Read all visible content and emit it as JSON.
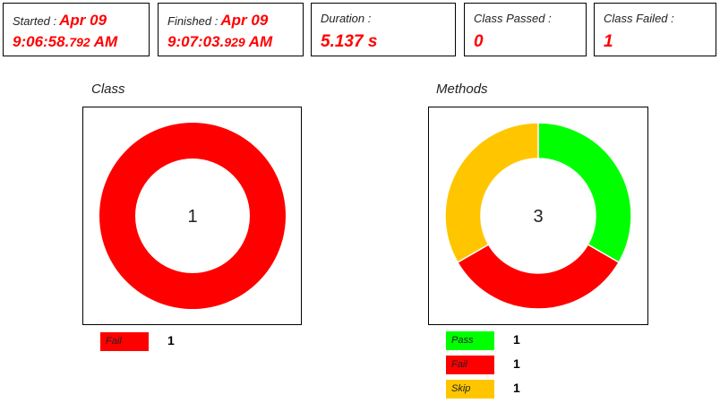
{
  "summary": {
    "started": {
      "label": "Started :",
      "date": "Apr 09",
      "time": "9:06:58.",
      "ms": "792",
      "ampm": " AM"
    },
    "finished": {
      "label": "Finished :",
      "date": "Apr 09",
      "time": "9:07:03.",
      "ms": "929",
      "ampm": " AM"
    },
    "duration": {
      "label": "Duration :",
      "value": "5.137 s"
    },
    "class_passed": {
      "label": "Class Passed :",
      "value": "0"
    },
    "class_failed": {
      "label": "Class Failed :",
      "value": "1"
    }
  },
  "colors": {
    "pass": "#00ff00",
    "fail": "#ff0000",
    "skip": "#ffc600"
  },
  "chart_data": [
    {
      "type": "pie",
      "title": "Class",
      "center_label": "1",
      "categories": [
        "Fail"
      ],
      "values": [
        1
      ],
      "colors": [
        "#ff0000"
      ],
      "legend": [
        {
          "label": "Fail",
          "count": "1"
        }
      ]
    },
    {
      "type": "pie",
      "title": "Methods",
      "center_label": "3",
      "categories": [
        "Pass",
        "Fail",
        "Skip"
      ],
      "values": [
        1,
        1,
        1
      ],
      "colors": [
        "#00ff00",
        "#ff0000",
        "#ffc600"
      ],
      "legend": [
        {
          "label": "Pass",
          "count": "1"
        },
        {
          "label": "Fail",
          "count": "1"
        },
        {
          "label": "Skip",
          "count": "1"
        }
      ]
    }
  ]
}
